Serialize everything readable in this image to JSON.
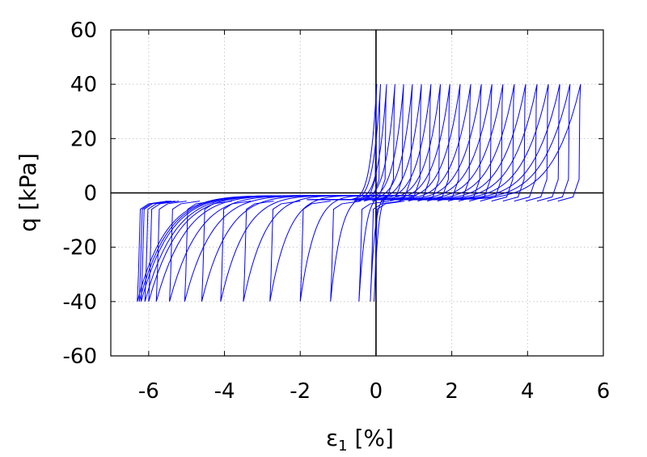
{
  "chart_data": {
    "type": "line",
    "xlabel_main": "ε",
    "xlabel_sub": "1",
    "xlabel_unit": " [%]",
    "ylabel": "q [kPa]",
    "xlim": [
      -7,
      6
    ],
    "ylim": [
      -60,
      60
    ],
    "x_ticks": [
      -6,
      -4,
      -2,
      0,
      2,
      4,
      6
    ],
    "y_ticks": [
      -60,
      -40,
      -20,
      0,
      20,
      40,
      60
    ],
    "grid": true,
    "series_color": "#0000ff",
    "compression_peak": 40,
    "extension_peak": -40,
    "compression_peaks_x": [
      0.02,
      0.12,
      0.28,
      0.5,
      0.73,
      0.96,
      1.2,
      1.45,
      1.7,
      1.95,
      2.22,
      2.5,
      2.78,
      3.06,
      3.35,
      3.65,
      3.95,
      4.25,
      4.55,
      4.85,
      5.12,
      5.4
    ],
    "extension_peaks_x": [
      -0.05,
      -0.15,
      -0.45,
      -1.2,
      -2,
      -2.8,
      -3.5,
      -4.1,
      -4.6,
      -5.05,
      -5.45,
      -5.8,
      -6.0,
      -6.1,
      -6.2,
      -6.25,
      -6.3
    ]
  }
}
